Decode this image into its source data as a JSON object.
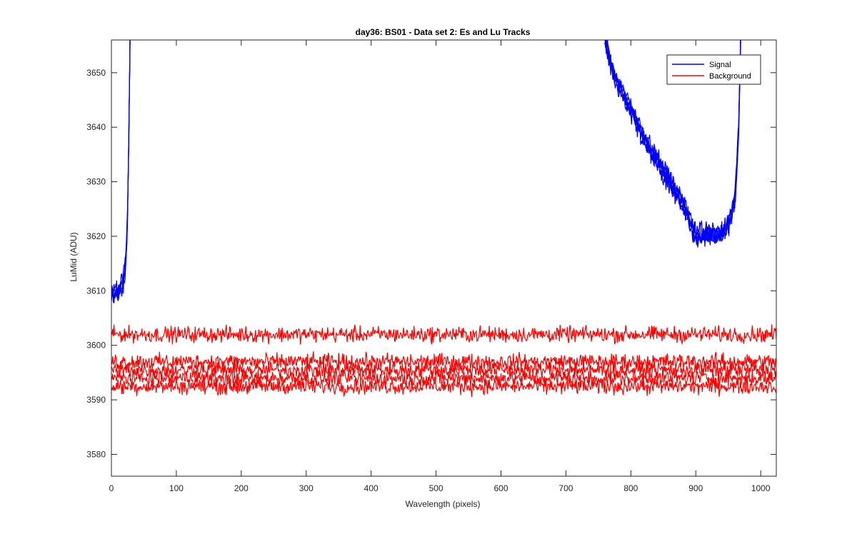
{
  "chart_data": {
    "type": "line",
    "title": "day36: BS01 - Data set 2: Es and Lu Tracks",
    "xlabel": "Wavelength (pixels)",
    "ylabel": "LuMid (ADU)",
    "xlim": [
      0,
      1024
    ],
    "ylim": [
      3576,
      3656
    ],
    "xticks": [
      0,
      100,
      200,
      300,
      400,
      500,
      600,
      700,
      800,
      900,
      1000
    ],
    "yticks": [
      3580,
      3590,
      3600,
      3610,
      3620,
      3630,
      3640,
      3650
    ],
    "grid": false,
    "legend_position": "top-right",
    "series": [
      {
        "name": "Signal",
        "color": "#0000ff",
        "trace_count": 5,
        "noise_amplitude_adu": 1.8,
        "x": [
          0,
          5,
          10,
          15,
          20,
          23,
          25,
          27,
          29,
          31,
          760,
          770,
          780,
          800,
          820,
          840,
          860,
          880,
          900,
          915,
          930,
          945,
          955,
          960,
          963,
          966,
          968,
          970
        ],
        "y": [
          3609,
          3610,
          3609.5,
          3611,
          3613,
          3617,
          3625,
          3640,
          3660,
          3700,
          3656,
          3651,
          3648,
          3643,
          3638,
          3634,
          3630,
          3626,
          3620,
          3620.5,
          3620,
          3621,
          3624,
          3627,
          3632,
          3640,
          3650,
          3662
        ]
      },
      {
        "name": "Background",
        "color": "#ff0000",
        "trace_count": 5,
        "noise_amplitude_adu": 1.6,
        "x": [
          0,
          1024
        ],
        "y": [
          3602,
          3602
        ],
        "trace_offsets_adu": [
          0,
          -5,
          -6.5,
          -8,
          -9.5
        ]
      }
    ]
  }
}
